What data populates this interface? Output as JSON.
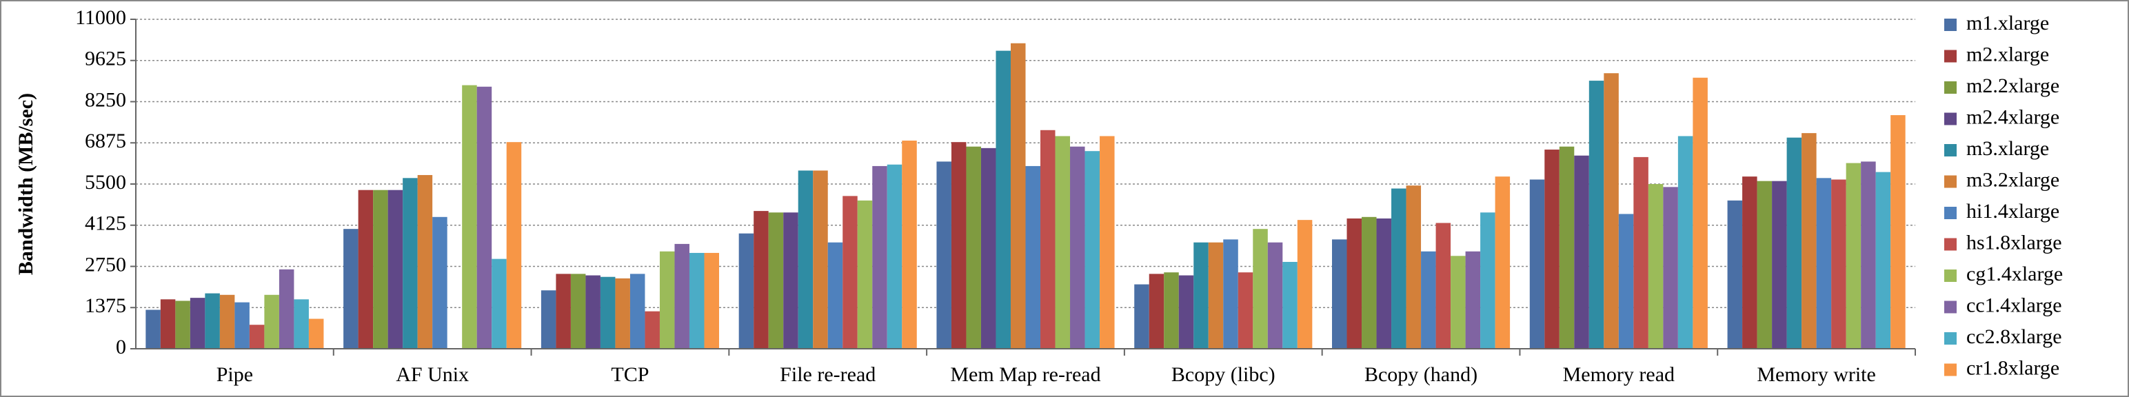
{
  "chart_data": {
    "type": "bar",
    "y_label": "Bandwidth (MB/sec)",
    "categories": [
      "Pipe",
      "AF Unix",
      "TCP",
      "File re-read",
      "Mem Map re-read",
      "Bcopy (libc)",
      "Bcopy (hand)",
      "Memory read",
      "Memory write"
    ],
    "ylim": [
      0,
      11000
    ],
    "yticks": [
      0,
      1375,
      2750,
      4125,
      5500,
      6875,
      8250,
      9625,
      11000
    ],
    "grid": true,
    "legend": "right",
    "series": [
      {
        "name": "m1.xlarge",
        "color": "#4a6fa5",
        "values": [
          1300,
          4000,
          1950,
          3850,
          6250,
          2150,
          3650,
          5650,
          4950
        ]
      },
      {
        "name": "m2.xlarge",
        "color": "#a33b3a",
        "values": [
          1650,
          5300,
          2500,
          4600,
          6900,
          2500,
          4350,
          6650,
          5750
        ]
      },
      {
        "name": "m2.2xlarge",
        "color": "#7f9b40",
        "values": [
          1600,
          5300,
          2500,
          4550,
          6750,
          2550,
          4400,
          6750,
          5600
        ]
      },
      {
        "name": "m2.4xlarge",
        "color": "#604888",
        "values": [
          1700,
          5300,
          2450,
          4550,
          6700,
          2450,
          4350,
          6450,
          5600
        ]
      },
      {
        "name": "m3.xlarge",
        "color": "#2f8ca3",
        "values": [
          1850,
          5700,
          2400,
          5950,
          9950,
          3550,
          5350,
          8950,
          7050
        ]
      },
      {
        "name": "m3.2xlarge",
        "color": "#d3803a",
        "values": [
          1800,
          5800,
          2350,
          5950,
          10200,
          3550,
          5450,
          9200,
          7200
        ]
      },
      {
        "name": "hi1.4xlarge",
        "color": "#4f81bd",
        "values": [
          1550,
          4400,
          2500,
          3550,
          6100,
          3650,
          3250,
          4500,
          5700
        ]
      },
      {
        "name": "hs1.8xlarge",
        "color": "#c0504d",
        "values": [
          800,
          null,
          1250,
          5100,
          7300,
          2550,
          4200,
          6400,
          5650
        ]
      },
      {
        "name": "cg1.4xlarge",
        "color": "#9bbb59",
        "values": [
          1800,
          8800,
          3250,
          4950,
          7100,
          4000,
          3100,
          5500,
          6200
        ]
      },
      {
        "name": "cc1.4xlarge",
        "color": "#8064a2",
        "values": [
          2650,
          8750,
          3500,
          6100,
          6750,
          3550,
          3250,
          5400,
          6250
        ]
      },
      {
        "name": "cc2.8xlarge",
        "color": "#4bacc6",
        "values": [
          1650,
          3000,
          3200,
          6150,
          6600,
          2900,
          4550,
          7100,
          5900
        ]
      },
      {
        "name": "cr1.8xlarge",
        "color": "#f79646",
        "values": [
          1000,
          6900,
          3200,
          6950,
          7100,
          4300,
          5750,
          9050,
          7800
        ]
      }
    ]
  }
}
